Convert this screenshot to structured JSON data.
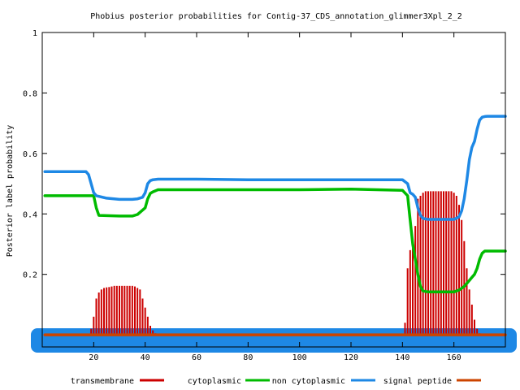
{
  "chart_data": {
    "type": "line",
    "title": "Phobius posterior probabilities for Contig-37_CDS_annotation_glimmer3Xpl_2_2",
    "xlabel": "",
    "ylabel": "Posterior label probability",
    "xlim": [
      0,
      180
    ],
    "ylim": [
      -0.04,
      1.0
    ],
    "xticks": [
      20,
      40,
      60,
      80,
      100,
      120,
      140,
      160
    ],
    "yticks": [
      0.2,
      0.4,
      0.6,
      0.8,
      1
    ],
    "ytick_labels": [
      "0.2",
      "0.4",
      "0.6",
      "0.8",
      "1"
    ],
    "legend_position": "bottom",
    "series": [
      {
        "name": "transmembrane",
        "style": "impulses",
        "color": "#cc0000",
        "x": [
          19,
          20,
          21,
          22,
          23,
          24,
          25,
          26,
          27,
          28,
          29,
          30,
          31,
          32,
          33,
          34,
          35,
          36,
          37,
          38,
          39,
          40,
          41,
          42,
          43,
          44,
          141,
          142,
          143,
          144,
          145,
          146,
          147,
          148,
          149,
          150,
          151,
          152,
          153,
          154,
          155,
          156,
          157,
          158,
          159,
          160,
          161,
          162,
          163,
          164,
          165,
          166,
          167,
          168,
          169,
          170
        ],
        "values": [
          0.02,
          0.06,
          0.12,
          0.14,
          0.15,
          0.155,
          0.157,
          0.158,
          0.16,
          0.162,
          0.162,
          0.162,
          0.162,
          0.162,
          0.162,
          0.162,
          0.162,
          0.16,
          0.155,
          0.15,
          0.12,
          0.09,
          0.06,
          0.03,
          0.015,
          0.005,
          0.04,
          0.22,
          0.28,
          0.3,
          0.36,
          0.45,
          0.46,
          0.47,
          0.475,
          0.475,
          0.475,
          0.475,
          0.475,
          0.475,
          0.475,
          0.475,
          0.475,
          0.475,
          0.475,
          0.47,
          0.46,
          0.43,
          0.38,
          0.31,
          0.22,
          0.15,
          0.1,
          0.05,
          0.02,
          0.005
        ]
      },
      {
        "name": "cytoplasmic",
        "color": "#00bb00",
        "x": [
          1,
          20,
          21,
          22,
          30,
          35,
          37,
          40,
          41,
          42,
          43,
          45,
          60,
          80,
          100,
          120,
          140,
          142,
          143,
          144,
          145,
          146,
          147,
          148,
          150,
          160,
          162,
          164,
          166,
          167,
          168,
          169,
          170,
          171,
          172,
          173,
          180
        ],
        "values": [
          0.46,
          0.46,
          0.42,
          0.395,
          0.393,
          0.393,
          0.398,
          0.42,
          0.45,
          0.468,
          0.473,
          0.48,
          0.48,
          0.48,
          0.48,
          0.482,
          0.478,
          0.46,
          0.38,
          0.3,
          0.25,
          0.2,
          0.16,
          0.145,
          0.142,
          0.142,
          0.148,
          0.16,
          0.18,
          0.19,
          0.2,
          0.22,
          0.25,
          0.27,
          0.277,
          0.277,
          0.277
        ]
      },
      {
        "name": "non cytoplasmic",
        "color": "#1e88e5",
        "x": [
          1,
          17,
          18,
          19,
          20,
          21,
          22,
          25,
          30,
          35,
          37,
          39,
          40,
          41,
          42,
          43,
          45,
          60,
          80,
          100,
          120,
          140,
          142,
          143,
          144,
          145,
          146,
          147,
          148,
          150,
          160,
          162,
          163,
          164,
          165,
          166,
          167,
          168,
          169,
          170,
          171,
          172,
          173,
          175,
          180
        ],
        "values": [
          0.54,
          0.54,
          0.53,
          0.5,
          0.47,
          0.46,
          0.458,
          0.452,
          0.448,
          0.448,
          0.45,
          0.455,
          0.47,
          0.5,
          0.51,
          0.513,
          0.515,
          0.515,
          0.513,
          0.513,
          0.513,
          0.513,
          0.5,
          0.47,
          0.465,
          0.455,
          0.42,
          0.395,
          0.385,
          0.382,
          0.382,
          0.39,
          0.41,
          0.45,
          0.51,
          0.58,
          0.62,
          0.64,
          0.68,
          0.71,
          0.72,
          0.722,
          0.723,
          0.723,
          0.723
        ]
      },
      {
        "name": "signal peptide",
        "color": "#cc4400",
        "x": [
          1,
          180
        ],
        "values": [
          0.0,
          0.0
        ]
      }
    ]
  }
}
